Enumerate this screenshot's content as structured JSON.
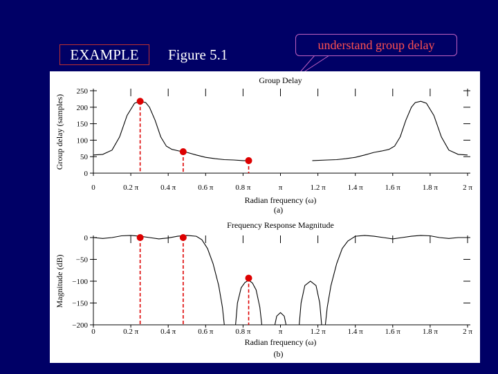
{
  "header": {
    "example_label": "EXAMPLE",
    "figure_label": "Figure 5.1",
    "callout_text": "understand group delay"
  },
  "colors": {
    "background": "#000066",
    "callout_text": "#ff5050",
    "callout_border": "#c060c0",
    "marker": "#dd0000",
    "curve": "#000000"
  },
  "chart_data": [
    {
      "type": "line",
      "title": "Group Delay",
      "xlabel": "Radian frequency (ω)",
      "ylabel": "Group delay (samples)",
      "caption": "(a)",
      "xlim": [
        0,
        2
      ],
      "ylim": [
        0,
        250
      ],
      "x_unit": "π",
      "x_ticks": [
        0,
        0.2,
        0.4,
        0.6,
        0.8,
        1.0,
        1.2,
        1.4,
        1.6,
        1.8,
        2.0
      ],
      "x_tick_labels": [
        "0",
        "0.2 π",
        "0.4 π",
        "0.6 π",
        "0.8 π",
        "π",
        "1.2 π",
        "1.4 π",
        "1.6 π",
        "1.8 π",
        "2 π"
      ],
      "y_ticks": [
        0,
        50,
        100,
        150,
        200,
        250
      ],
      "y_tick_labels": [
        "0",
        "50",
        "100",
        "150",
        "200",
        "250"
      ],
      "series": [
        {
          "segments": [
            [
              [
                0,
                55
              ],
              [
                0.05,
                57
              ],
              [
                0.1,
                70
              ],
              [
                0.14,
                110
              ],
              [
                0.18,
                175
              ],
              [
                0.22,
                212
              ],
              [
                0.25,
                218
              ],
              [
                0.28,
                214
              ],
              [
                0.3,
                200
              ],
              [
                0.33,
                160
              ],
              [
                0.36,
                110
              ],
              [
                0.39,
                82
              ],
              [
                0.42,
                72
              ],
              [
                0.46,
                67
              ],
              [
                0.5,
                63
              ],
              [
                0.55,
                55
              ],
              [
                0.6,
                48
              ],
              [
                0.65,
                44
              ],
              [
                0.7,
                41
              ],
              [
                0.75,
                40
              ],
              [
                0.8,
                38
              ],
              [
                0.83,
                38
              ]
            ],
            [
              [
                1.17,
                38
              ],
              [
                1.25,
                40
              ],
              [
                1.3,
                41
              ],
              [
                1.35,
                44
              ],
              [
                1.4,
                48
              ],
              [
                1.45,
                55
              ],
              [
                1.5,
                63
              ],
              [
                1.54,
                67
              ],
              [
                1.58,
                72
              ],
              [
                1.61,
                82
              ],
              [
                1.64,
                110
              ],
              [
                1.67,
                160
              ],
              [
                1.7,
                200
              ],
              [
                1.72,
                214
              ],
              [
                1.75,
                218
              ],
              [
                1.78,
                212
              ],
              [
                1.82,
                175
              ],
              [
                1.86,
                110
              ],
              [
                1.9,
                70
              ],
              [
                1.95,
                57
              ],
              [
                2.0,
                55
              ]
            ]
          ]
        }
      ],
      "markers": [
        {
          "x": 0.25,
          "y": 218
        },
        {
          "x": 0.48,
          "y": 65
        },
        {
          "x": 0.83,
          "y": 38
        }
      ]
    },
    {
      "type": "line",
      "title": "Frequency Response Magnitude",
      "xlabel": "Radian frequency (ω)",
      "ylabel": "Magnitude (dB)",
      "caption": "(b)",
      "xlim": [
        0,
        2
      ],
      "ylim": [
        -200,
        0
      ],
      "x_unit": "π",
      "x_ticks": [
        0,
        0.2,
        0.4,
        0.6,
        0.8,
        1.0,
        1.2,
        1.4,
        1.6,
        1.8,
        2.0
      ],
      "x_tick_labels": [
        "0",
        "0.2 π",
        "0.4 π",
        "0.6 π",
        "0.8 π",
        "π",
        "1.2 π",
        "1.4 π",
        "1.6 π",
        "1.8 π",
        "2 π"
      ],
      "y_ticks": [
        0,
        -50,
        -100,
        -150,
        -200
      ],
      "y_tick_labels": [
        "0",
        "−50",
        "−100",
        "−150",
        "−200"
      ],
      "series": [
        {
          "segments": [
            [
              [
                0,
                0
              ],
              [
                0.05,
                -2
              ],
              [
                0.1,
                0
              ],
              [
                0.15,
                4
              ],
              [
                0.2,
                5
              ],
              [
                0.25,
                3
              ],
              [
                0.3,
                0
              ],
              [
                0.35,
                -3
              ],
              [
                0.4,
                -1
              ],
              [
                0.45,
                3
              ],
              [
                0.5,
                5
              ],
              [
                0.55,
                3
              ],
              [
                0.58,
                -5
              ],
              [
                0.61,
                -25
              ],
              [
                0.64,
                -60
              ],
              [
                0.67,
                -110
              ],
              [
                0.69,
                -160
              ],
              [
                0.7,
                -200
              ]
            ],
            [
              [
                0.76,
                -200
              ],
              [
                0.77,
                -150
              ],
              [
                0.79,
                -115
              ],
              [
                0.81,
                -103
              ],
              [
                0.83,
                -98
              ],
              [
                0.85,
                -104
              ],
              [
                0.87,
                -120
              ],
              [
                0.89,
                -160
              ],
              [
                0.9,
                -200
              ]
            ],
            [
              [
                0.97,
                -200
              ],
              [
                0.98,
                -180
              ],
              [
                1.0,
                -172
              ],
              [
                1.02,
                -180
              ],
              [
                1.03,
                -200
              ]
            ],
            [
              [
                1.1,
                -200
              ],
              [
                1.11,
                -150
              ],
              [
                1.13,
                -110
              ],
              [
                1.16,
                -100
              ],
              [
                1.19,
                -110
              ],
              [
                1.21,
                -150
              ],
              [
                1.22,
                -200
              ]
            ],
            [
              [
                1.24,
                -200
              ],
              [
                1.25,
                -160
              ],
              [
                1.27,
                -110
              ],
              [
                1.3,
                -60
              ],
              [
                1.33,
                -25
              ],
              [
                1.36,
                -8
              ],
              [
                1.4,
                3
              ],
              [
                1.45,
                5
              ],
              [
                1.5,
                3
              ],
              [
                1.55,
                0
              ],
              [
                1.6,
                -3
              ],
              [
                1.65,
                0
              ],
              [
                1.7,
                3
              ],
              [
                1.75,
                5
              ],
              [
                1.8,
                4
              ],
              [
                1.85,
                0
              ],
              [
                1.9,
                -2
              ],
              [
                1.95,
                0
              ],
              [
                2.0,
                0
              ]
            ]
          ]
        }
      ],
      "markers": [
        {
          "x": 0.25,
          "y": 0
        },
        {
          "x": 0.48,
          "y": 0
        },
        {
          "x": 0.83,
          "y": -93
        }
      ]
    }
  ]
}
